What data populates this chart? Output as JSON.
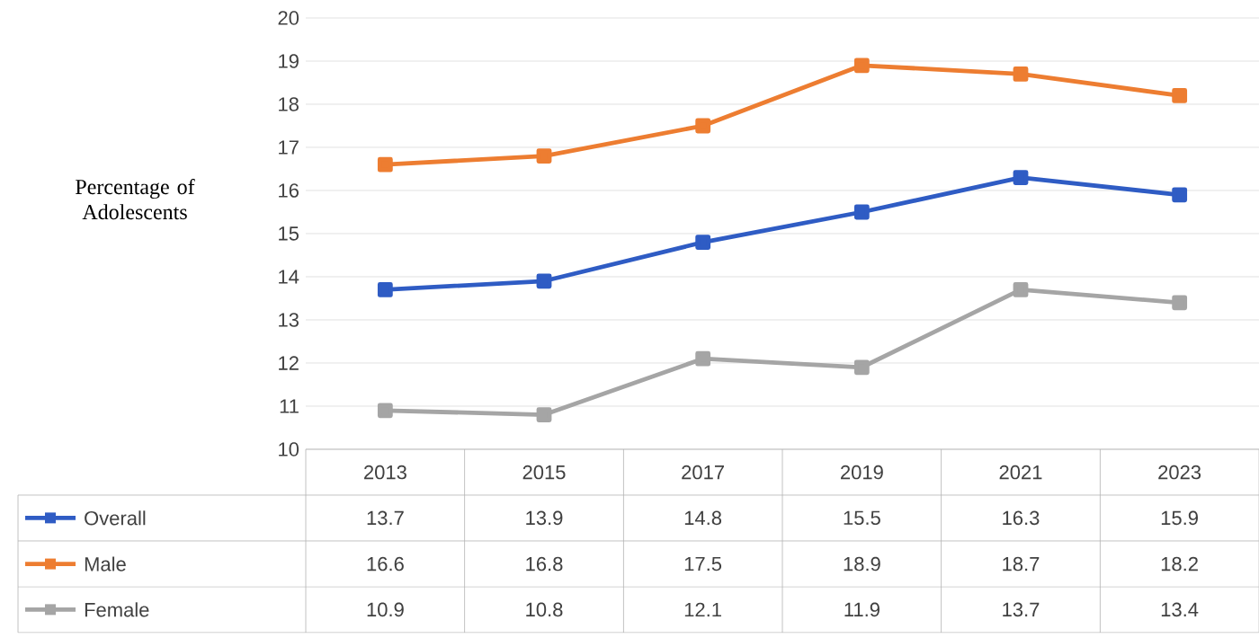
{
  "chart_data": {
    "type": "line",
    "ylabel": "Percentage of Adolescents",
    "categories": [
      "2013",
      "2015",
      "2017",
      "2019",
      "2021",
      "2023"
    ],
    "series": [
      {
        "name": "Overall",
        "color": "#2f5cc4",
        "values": [
          13.7,
          13.9,
          14.8,
          15.5,
          16.3,
          15.9
        ]
      },
      {
        "name": "Male",
        "color": "#ed7d31",
        "values": [
          16.6,
          16.8,
          17.5,
          18.9,
          18.7,
          18.2
        ]
      },
      {
        "name": "Female",
        "color": "#a5a5a5",
        "values": [
          10.9,
          10.8,
          12.1,
          11.9,
          13.7,
          13.4
        ]
      }
    ],
    "ylim": [
      10,
      20
    ],
    "yticks": [
      10,
      11,
      12,
      13,
      14,
      15,
      16,
      17,
      18,
      19,
      20
    ],
    "grid": "y",
    "legend": "bottom",
    "marker": "square",
    "data_labels": true
  }
}
